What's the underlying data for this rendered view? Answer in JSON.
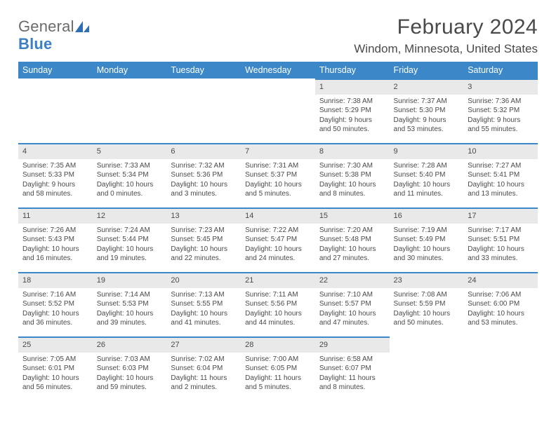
{
  "brand": {
    "word1": "General",
    "word2": "Blue"
  },
  "title": "February 2024",
  "location": "Windom, Minnesota, United States",
  "colors": {
    "header_bg": "#3b87c8",
    "header_text": "#ffffff",
    "daynum_bg": "#e9e9e9",
    "daynum_border": "#3b87c8",
    "body_text": "#4a4a4a",
    "page_bg": "#ffffff",
    "logo_gray": "#6b6b6b",
    "logo_blue": "#3b7fc4"
  },
  "calendar": {
    "type": "table",
    "columns": [
      "Sunday",
      "Monday",
      "Tuesday",
      "Wednesday",
      "Thursday",
      "Friday",
      "Saturday"
    ],
    "weeks": [
      [
        null,
        null,
        null,
        null,
        {
          "n": "1",
          "sunrise": "7:38 AM",
          "sunset": "5:29 PM",
          "day_h": "9",
          "day_m": "50"
        },
        {
          "n": "2",
          "sunrise": "7:37 AM",
          "sunset": "5:30 PM",
          "day_h": "9",
          "day_m": "53"
        },
        {
          "n": "3",
          "sunrise": "7:36 AM",
          "sunset": "5:32 PM",
          "day_h": "9",
          "day_m": "55"
        }
      ],
      [
        {
          "n": "4",
          "sunrise": "7:35 AM",
          "sunset": "5:33 PM",
          "day_h": "9",
          "day_m": "58"
        },
        {
          "n": "5",
          "sunrise": "7:33 AM",
          "sunset": "5:34 PM",
          "day_h": "10",
          "day_m": "0"
        },
        {
          "n": "6",
          "sunrise": "7:32 AM",
          "sunset": "5:36 PM",
          "day_h": "10",
          "day_m": "3"
        },
        {
          "n": "7",
          "sunrise": "7:31 AM",
          "sunset": "5:37 PM",
          "day_h": "10",
          "day_m": "5"
        },
        {
          "n": "8",
          "sunrise": "7:30 AM",
          "sunset": "5:38 PM",
          "day_h": "10",
          "day_m": "8"
        },
        {
          "n": "9",
          "sunrise": "7:28 AM",
          "sunset": "5:40 PM",
          "day_h": "10",
          "day_m": "11"
        },
        {
          "n": "10",
          "sunrise": "7:27 AM",
          "sunset": "5:41 PM",
          "day_h": "10",
          "day_m": "13"
        }
      ],
      [
        {
          "n": "11",
          "sunrise": "7:26 AM",
          "sunset": "5:43 PM",
          "day_h": "10",
          "day_m": "16"
        },
        {
          "n": "12",
          "sunrise": "7:24 AM",
          "sunset": "5:44 PM",
          "day_h": "10",
          "day_m": "19"
        },
        {
          "n": "13",
          "sunrise": "7:23 AM",
          "sunset": "5:45 PM",
          "day_h": "10",
          "day_m": "22"
        },
        {
          "n": "14",
          "sunrise": "7:22 AM",
          "sunset": "5:47 PM",
          "day_h": "10",
          "day_m": "24"
        },
        {
          "n": "15",
          "sunrise": "7:20 AM",
          "sunset": "5:48 PM",
          "day_h": "10",
          "day_m": "27"
        },
        {
          "n": "16",
          "sunrise": "7:19 AM",
          "sunset": "5:49 PM",
          "day_h": "10",
          "day_m": "30"
        },
        {
          "n": "17",
          "sunrise": "7:17 AM",
          "sunset": "5:51 PM",
          "day_h": "10",
          "day_m": "33"
        }
      ],
      [
        {
          "n": "18",
          "sunrise": "7:16 AM",
          "sunset": "5:52 PM",
          "day_h": "10",
          "day_m": "36"
        },
        {
          "n": "19",
          "sunrise": "7:14 AM",
          "sunset": "5:53 PM",
          "day_h": "10",
          "day_m": "39"
        },
        {
          "n": "20",
          "sunrise": "7:13 AM",
          "sunset": "5:55 PM",
          "day_h": "10",
          "day_m": "41"
        },
        {
          "n": "21",
          "sunrise": "7:11 AM",
          "sunset": "5:56 PM",
          "day_h": "10",
          "day_m": "44"
        },
        {
          "n": "22",
          "sunrise": "7:10 AM",
          "sunset": "5:57 PM",
          "day_h": "10",
          "day_m": "47"
        },
        {
          "n": "23",
          "sunrise": "7:08 AM",
          "sunset": "5:59 PM",
          "day_h": "10",
          "day_m": "50"
        },
        {
          "n": "24",
          "sunrise": "7:06 AM",
          "sunset": "6:00 PM",
          "day_h": "10",
          "day_m": "53"
        }
      ],
      [
        {
          "n": "25",
          "sunrise": "7:05 AM",
          "sunset": "6:01 PM",
          "day_h": "10",
          "day_m": "56"
        },
        {
          "n": "26",
          "sunrise": "7:03 AM",
          "sunset": "6:03 PM",
          "day_h": "10",
          "day_m": "59"
        },
        {
          "n": "27",
          "sunrise": "7:02 AM",
          "sunset": "6:04 PM",
          "day_h": "11",
          "day_m": "2"
        },
        {
          "n": "28",
          "sunrise": "7:00 AM",
          "sunset": "6:05 PM",
          "day_h": "11",
          "day_m": "5"
        },
        {
          "n": "29",
          "sunrise": "6:58 AM",
          "sunset": "6:07 PM",
          "day_h": "11",
          "day_m": "8"
        },
        null,
        null
      ]
    ]
  },
  "labels": {
    "sunrise_prefix": "Sunrise: ",
    "sunset_prefix": "Sunset: ",
    "daylight_prefix": "Daylight: ",
    "hours_word": " hours",
    "and_word": "and ",
    "minutes_word": " minutes."
  }
}
